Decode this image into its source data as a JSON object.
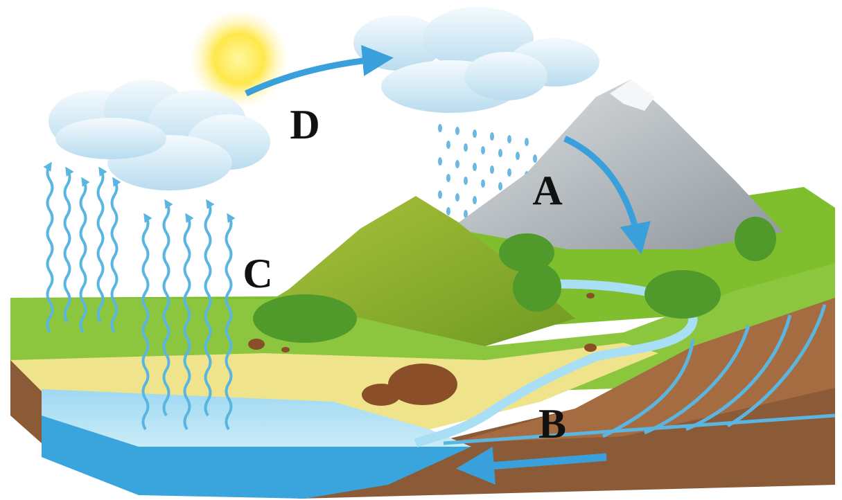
{
  "labels": {
    "a": "A",
    "b": "B",
    "c": "C",
    "d": "D"
  }
}
